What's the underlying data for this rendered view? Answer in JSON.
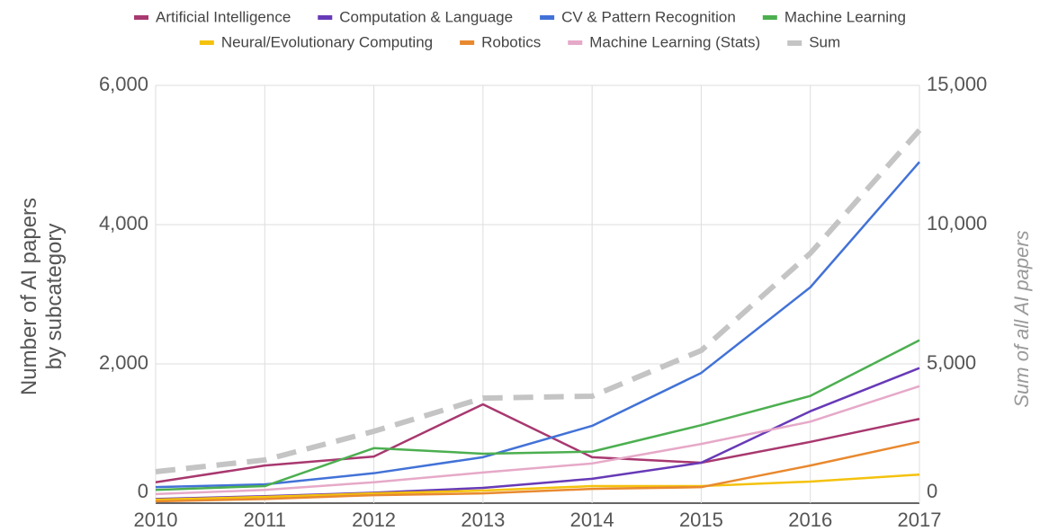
{
  "chart_data": {
    "type": "line",
    "x": [
      2010,
      2011,
      2012,
      2013,
      2014,
      2015,
      2016,
      2017
    ],
    "xlim": [
      2010,
      2017
    ],
    "xticks": [
      2010,
      2011,
      2012,
      2013,
      2014,
      2015,
      2016,
      2017
    ],
    "ylabel": "Number of AI papers by subcategory",
    "y2label": "Sum of all AI papers",
    "ylim": [
      0,
      6000
    ],
    "yticks": [
      0,
      {
        "value": 2000,
        "label": "2,000"
      },
      {
        "value": 4000,
        "label": "4,000"
      },
      {
        "value": 6000,
        "label": "6,000"
      }
    ],
    "y2lim": [
      0,
      15000
    ],
    "y2ticks": [
      0,
      {
        "value": 5000,
        "label": "5,000"
      },
      {
        "value": 10000,
        "label": "10,000"
      },
      {
        "value": 15000,
        "label": "15,000"
      }
    ],
    "grid": true,
    "legend": "top",
    "series": [
      {
        "name": "Artificial Intelligence",
        "color": "#a8386f",
        "values": [
          300,
          540,
          670,
          1420,
          660,
          580,
          880,
          1210
        ]
      },
      {
        "name": "Computation & Language",
        "color": "#673ab7",
        "values": [
          60,
          100,
          150,
          220,
          350,
          580,
          1320,
          1940
        ]
      },
      {
        "name": "CV & Pattern Recognition",
        "color": "#4272d7",
        "values": [
          230,
          270,
          430,
          660,
          1110,
          1870,
          3100,
          4900
        ]
      },
      {
        "name": "Machine Learning",
        "color": "#4caf50",
        "values": [
          190,
          245,
          790,
          710,
          740,
          1120,
          1540,
          2340
        ]
      },
      {
        "name": "Neural/Evolutionary Computing",
        "color": "#f4c20d",
        "values": [
          50,
          90,
          140,
          180,
          245,
          245,
          310,
          410
        ]
      },
      {
        "name": "Robotics",
        "color": "#e8892f",
        "values": [
          25,
          60,
          115,
          140,
          205,
          230,
          540,
          880
        ]
      },
      {
        "name": "Machine Learning (Stats)",
        "color": "#e6a9c8",
        "values": [
          130,
          190,
          300,
          440,
          570,
          850,
          1170,
          1680
        ]
      },
      {
        "name": "Sum",
        "color": "#c4c4c4",
        "axis": "y2",
        "dashed": true,
        "values": [
          1130,
          1550,
          2580,
          3770,
          3840,
          5480,
          8970,
          13390
        ]
      }
    ]
  }
}
